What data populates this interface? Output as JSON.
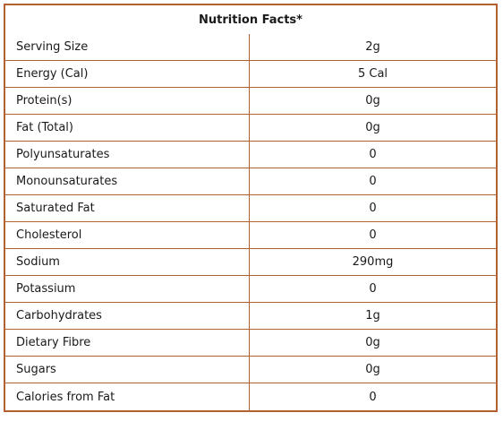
{
  "table": {
    "title": "Nutrition Facts*",
    "rows": [
      {
        "label": "Serving Size",
        "value": "2g"
      },
      {
        "label": "Energy (Cal)",
        "value": "5 Cal"
      },
      {
        "label": "Protein(s)",
        "value": "0g"
      },
      {
        "label": "Fat (Total)",
        "value": "0g"
      },
      {
        "label": "Polyunsaturates",
        "value": "0"
      },
      {
        "label": "Monounsaturates",
        "value": "0"
      },
      {
        "label": "Saturated Fat",
        "value": "0"
      },
      {
        "label": "Cholesterol",
        "value": "0"
      },
      {
        "label": "Sodium",
        "value": "290mg"
      },
      {
        "label": "Potassium",
        "value": "0"
      },
      {
        "label": "Carbohydrates",
        "value": "1g"
      },
      {
        "label": "Dietary Fibre",
        "value": "0g"
      },
      {
        "label": "Sugars",
        "value": "0g"
      },
      {
        "label": "Calories from Fat",
        "value": "0"
      }
    ]
  },
  "colors": {
    "border": "#b0622f",
    "background": "#ffffff",
    "text": "#1a1a1a"
  }
}
